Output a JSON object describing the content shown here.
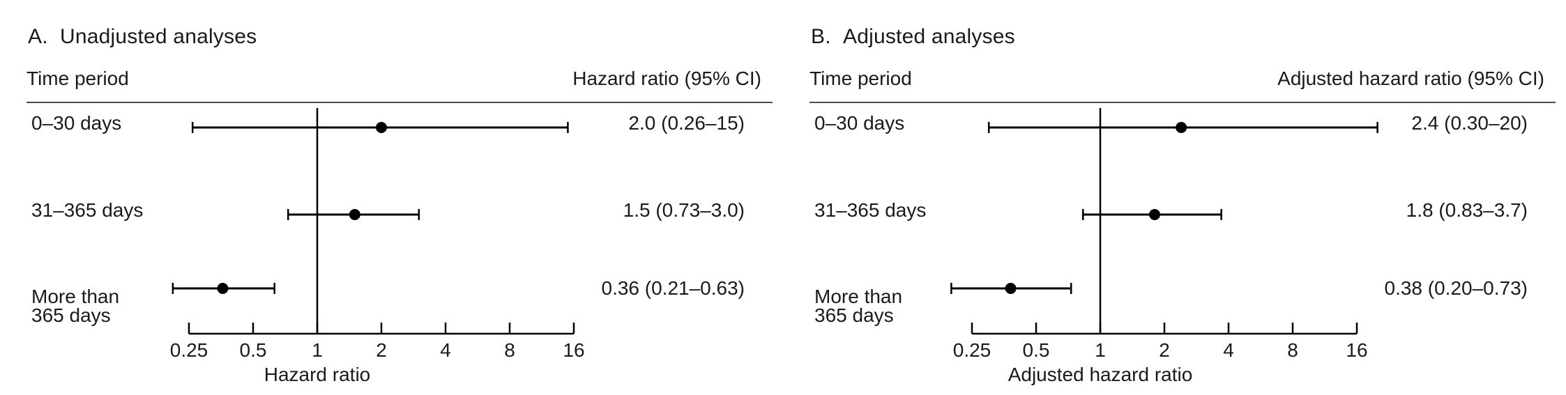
{
  "figure": {
    "background_color": "#ffffff",
    "line_color": "#000000",
    "text_color": "#1a1a1a",
    "panels": [
      {
        "title_prefix": "A.",
        "title": "Unadjusted analyses",
        "col_left": "Time period",
        "col_right": "Hazard ratio (95% CI)",
        "axis_label": "Hazard ratio",
        "rows": [
          {
            "label_lines": [
              "0–30 days"
            ],
            "value": "2.0 (0.26–15)"
          },
          {
            "label_lines": [
              "31–365 days"
            ],
            "value": "1.5 (0.73–3.0)"
          },
          {
            "label_lines": [
              "More than",
              "365 days"
            ],
            "value": "0.36 (0.21–0.63)"
          }
        ]
      },
      {
        "title_prefix": "B.",
        "title": "Adjusted analyses",
        "col_left": "Time period",
        "col_right": "Adjusted hazard ratio (95% CI)",
        "axis_label": "Adjusted hazard ratio",
        "rows": [
          {
            "label_lines": [
              "0–30 days"
            ],
            "value": "2.4 (0.30–20)"
          },
          {
            "label_lines": [
              "31–365 days"
            ],
            "value": "1.8 (0.83–3.7)"
          },
          {
            "label_lines": [
              "More than",
              "365 days"
            ],
            "value": "0.38 (0.20–0.73)"
          }
        ]
      }
    ]
  },
  "chart_data": [
    {
      "type": "scatter",
      "variant": "forest",
      "title": "A. Unadjusted analyses",
      "xlabel": "Hazard ratio",
      "ylabel": "Time period",
      "x_scale": "log2",
      "xlim": [
        0.25,
        16
      ],
      "x_ticks": [
        0.25,
        0.5,
        1,
        2,
        4,
        8,
        16
      ],
      "reference_line": 1,
      "grid": false,
      "categories": [
        "0–30 days",
        "31–365 days",
        "More than 365 days"
      ],
      "estimates": [
        2.0,
        1.5,
        0.36
      ],
      "ci_lower": [
        0.26,
        0.73,
        0.21
      ],
      "ci_upper": [
        15,
        3.0,
        0.63
      ],
      "point_labels": [
        "2.0 (0.26–15)",
        "1.5 (0.73–3.0)",
        "0.36 (0.21–0.63)"
      ]
    },
    {
      "type": "scatter",
      "variant": "forest",
      "title": "B. Adjusted analyses",
      "xlabel": "Adjusted hazard ratio",
      "ylabel": "Time period",
      "x_scale": "log2",
      "xlim": [
        0.25,
        16
      ],
      "x_ticks": [
        0.25,
        0.5,
        1,
        2,
        4,
        8,
        16
      ],
      "reference_line": 1,
      "grid": false,
      "categories": [
        "0–30 days",
        "31–365 days",
        "More than 365 days"
      ],
      "estimates": [
        2.4,
        1.8,
        0.38
      ],
      "ci_lower": [
        0.3,
        0.83,
        0.2
      ],
      "ci_upper": [
        20,
        3.7,
        0.73
      ],
      "point_labels": [
        "2.4 (0.30–20)",
        "1.8 (0.83–3.7)",
        "0.38 (0.20–0.73)"
      ]
    }
  ]
}
